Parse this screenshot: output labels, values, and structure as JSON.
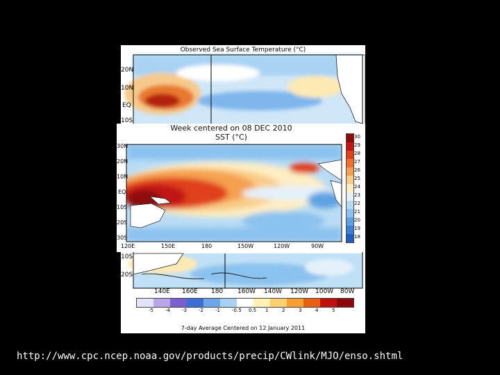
{
  "back_map": {
    "title": "Observed Sea Surface Temperature (°C)",
    "lat_labels": [
      "20N",
      "10N",
      "EQ",
      "10S",
      "10S",
      "20S"
    ],
    "lon_labels": [
      "140E",
      "160E",
      "180",
      "160W",
      "140W",
      "120W",
      "100W",
      "80W"
    ],
    "anomaly_colorbar": {
      "ticks": [
        "-5",
        "-4",
        "-3",
        "-2",
        "-1",
        "-0.5",
        "0.5",
        "1",
        "2",
        "3",
        "4",
        "5"
      ],
      "colors": [
        "#e3e3f7",
        "#b8a6e6",
        "#7a5fd0",
        "#3a6fd6",
        "#6ea6ea",
        "#a8d0f4",
        "#ffffff",
        "#fff2b0",
        "#ffd070",
        "#f7a030",
        "#e86010",
        "#c01010",
        "#8c0808"
      ]
    },
    "footer": "7-day Average Centered on 12 January 2011"
  },
  "front_map": {
    "title_line1": "Week centered on 08 DEC 2010",
    "title_line2": "SST (°C)",
    "lat_labels": [
      "30N",
      "20N",
      "10N",
      "EQ",
      "10S",
      "20S",
      "30S"
    ],
    "lon_labels": [
      "120E",
      "150E",
      "180",
      "150W",
      "120W",
      "90W"
    ],
    "colorbar": {
      "ticks": [
        "30",
        "29",
        "28",
        "27",
        "26",
        "25",
        "24",
        "23",
        "22",
        "21",
        "20",
        "19",
        "18"
      ],
      "colors": [
        "#8c0a0a",
        "#c21414",
        "#e0401c",
        "#f07030",
        "#f5a050",
        "#f9cc88",
        "#fdeec4",
        "#e4f1fb",
        "#b9dcf5",
        "#8cc2ee",
        "#5ea3e3",
        "#3a80d6",
        "#1f5fc4"
      ]
    }
  },
  "url": "http://www.cpc.ncep.noaa.gov/products/precip/CWlink/MJO/enso.shtml"
}
